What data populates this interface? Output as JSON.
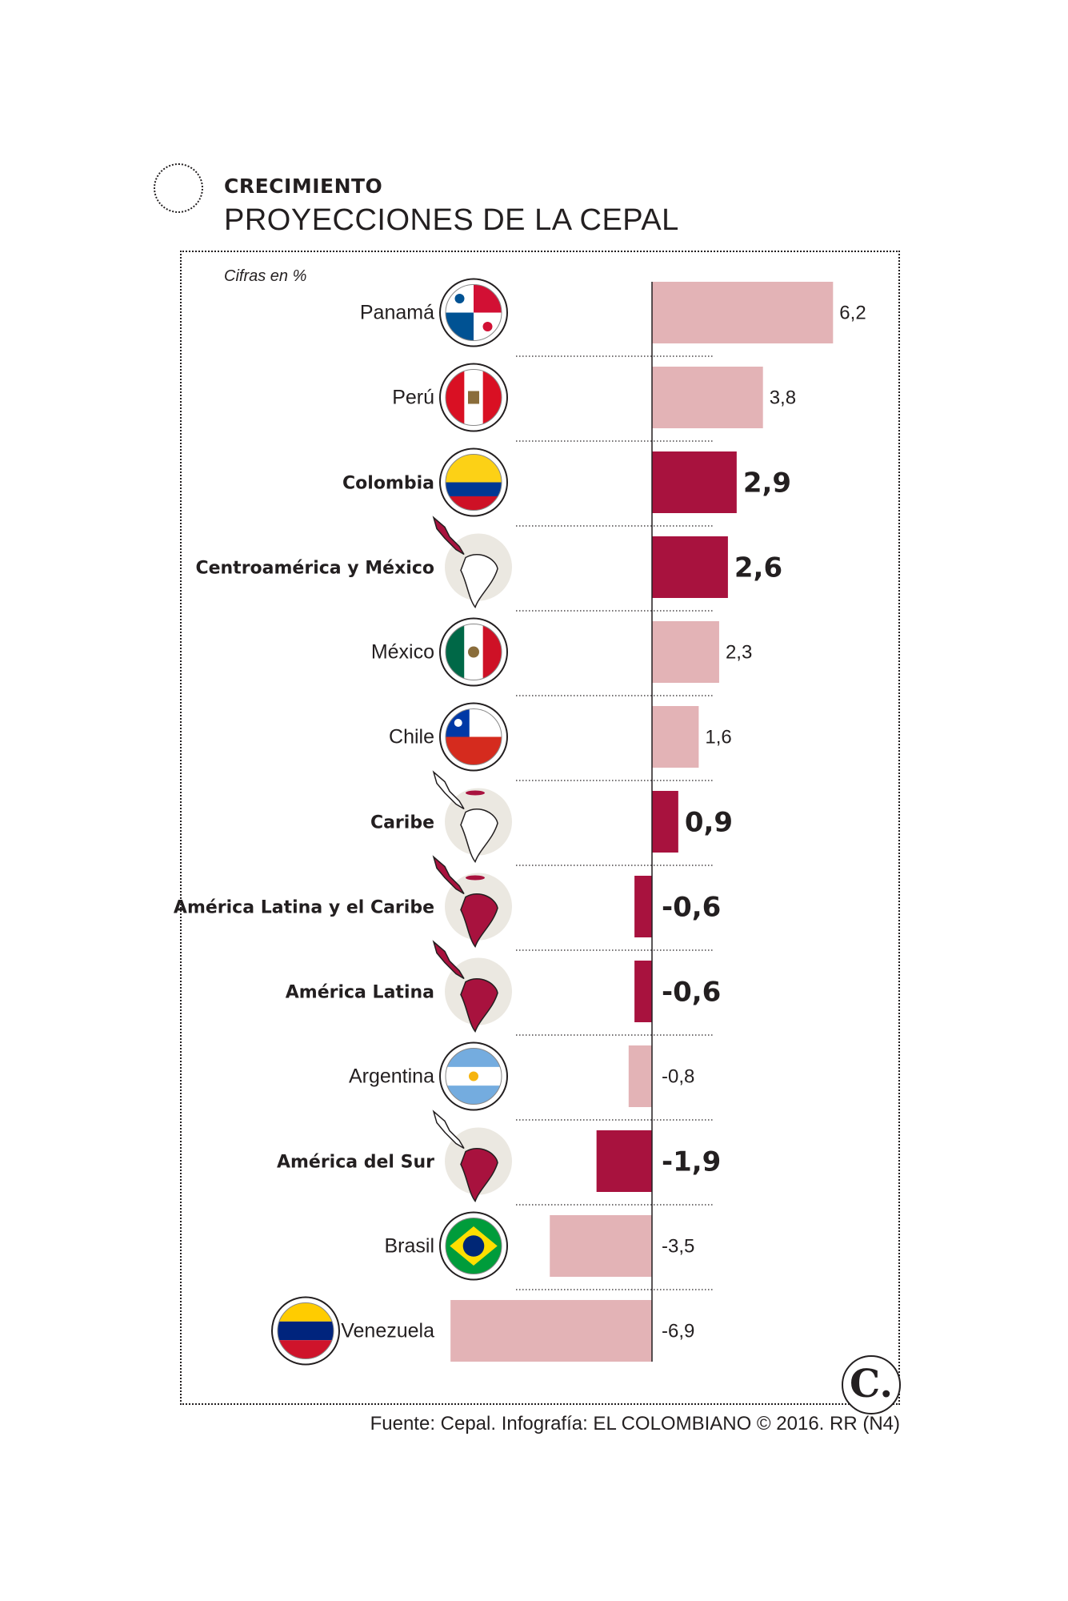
{
  "header": {
    "kicker": "CRECIMIENTO",
    "title": "PROYECCIONES DE LA CEPAL",
    "units": "Cifras en %"
  },
  "footer": {
    "source": "Fuente: Cepal. Infografía: EL COLOMBIANO © 2016. RR (N4)",
    "logo": "C."
  },
  "colors": {
    "highlight": "#a8123e",
    "normal": "#e3b3b6",
    "map_fill": "#ebe8e1",
    "text": "#231f20"
  },
  "chart_data": {
    "type": "bar",
    "orientation": "horizontal",
    "xlim": [
      -6.9,
      6.2
    ],
    "grid": false,
    "legend": "none",
    "categories": [
      "Panamá",
      "Perú",
      "Colombia",
      "Centroamérica y México",
      "México",
      "Chile",
      "Caribe",
      "América Latina y el Caribe",
      "América Latina",
      "Argentina",
      "América del Sur",
      "Brasil",
      "Venezuela"
    ],
    "values": [
      6.2,
      3.8,
      2.9,
      2.6,
      2.3,
      1.6,
      0.9,
      -0.6,
      -0.6,
      -0.8,
      -1.9,
      -3.5,
      -6.9
    ],
    "value_labels": [
      "6,2",
      "3,8",
      "2,9",
      "2,6",
      "2,3",
      "1,6",
      "0,9",
      "-0,6",
      "-0,6",
      "-0,8",
      "-1,9",
      "-3,5",
      "-6,9"
    ],
    "highlighted": [
      false,
      false,
      true,
      true,
      false,
      false,
      true,
      true,
      true,
      false,
      true,
      false,
      false
    ],
    "icons": [
      "panama-flag-icon",
      "peru-flag-icon",
      "colombia-flag-icon",
      "central-america-mexico-map-icon",
      "mexico-flag-icon",
      "chile-flag-icon",
      "caribbean-map-icon",
      "latin-america-caribbean-map-icon",
      "latin-america-map-icon",
      "argentina-flag-icon",
      "south-america-map-icon",
      "brazil-flag-icon",
      "venezuela-flag-icon"
    ]
  }
}
